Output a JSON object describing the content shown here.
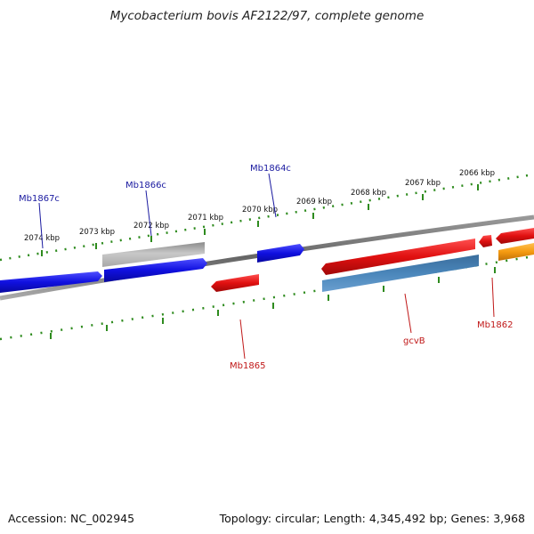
{
  "title": "Mycobacterium bovis AF2122/97, complete genome",
  "footer": {
    "accession": "Accession: NC_002945",
    "summary": "Topology: circular; Length: 4,345,492 bp; Genes: 3,968"
  },
  "colors": {
    "backbone": "#777777",
    "tick": "#2e8b1e",
    "forward_gene": "#1010e0",
    "reverse_gene": "#e01010",
    "pseudo_gene": "#b4b4b4",
    "rna_gene": "#4682b4",
    "other_gene": "#f5a020",
    "label_forward": "#1a1aa0",
    "label_reverse": "#c01818"
  },
  "ticks": {
    "unit": "kbp",
    "labels": [
      "2074 kbp",
      "2073 kbp",
      "2072 kbp",
      "2071 kbp",
      "2070 kbp",
      "2069 kbp",
      "2068 kbp",
      "2067 kbp",
      "2066 kbp"
    ]
  },
  "gene_labels": [
    "Mb1867c",
    "Mb1866c",
    "Mb1864c",
    "Mb1865",
    "gcvB",
    "Mb1862"
  ]
}
